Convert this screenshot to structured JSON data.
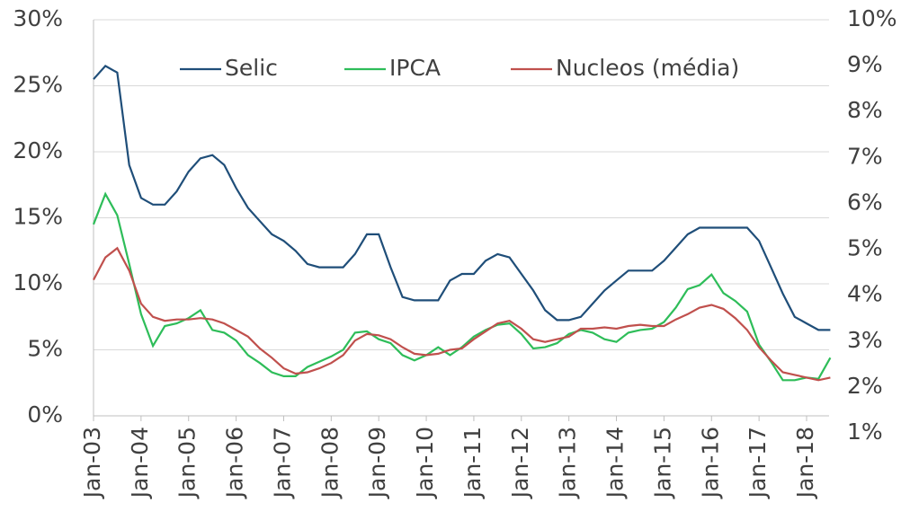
{
  "chart_data": {
    "type": "line",
    "categories": [
      "Jan-03",
      null,
      null,
      null,
      "Jan-04",
      null,
      null,
      null,
      "Jan-05",
      null,
      null,
      null,
      "Jan-06",
      null,
      null,
      null,
      "Jan-07",
      null,
      null,
      null,
      "Jan-08",
      null,
      null,
      null,
      "Jan-09",
      null,
      null,
      null,
      "Jan-10",
      null,
      null,
      null,
      "Jan-11",
      null,
      null,
      null,
      "Jan-12",
      null,
      null,
      null,
      "Jan-13",
      null,
      null,
      null,
      "Jan-14",
      null,
      null,
      null,
      "Jan-15",
      null,
      null,
      null,
      "Jan-16",
      null,
      null,
      null,
      "Jan-17",
      null,
      null,
      null,
      "Jan-18",
      null,
      null
    ],
    "series": [
      {
        "name": "Selic",
        "color": "#1f4e79",
        "values": [
          25.5,
          26.5,
          26,
          19,
          16.5,
          16,
          16,
          17,
          18.5,
          19.5,
          19.75,
          19,
          17.25,
          15.75,
          14.75,
          13.75,
          13.25,
          12.5,
          11.5,
          11.25,
          11.25,
          11.25,
          12.25,
          13.75,
          13.75,
          11.25,
          9,
          8.75,
          8.75,
          8.75,
          10.25,
          10.75,
          10.75,
          11.75,
          12.25,
          12,
          10.75,
          9.5,
          8,
          7.25,
          7.25,
          7.5,
          8.5,
          9.5,
          10.25,
          11,
          11,
          11,
          11.75,
          12.75,
          13.75,
          14.25,
          14.25,
          14.25,
          14.25,
          14.25,
          13.25,
          11.25,
          9.25,
          7.5,
          7,
          6.5,
          6.5
        ]
      },
      {
        "name": "IPCA",
        "color": "#2ebd59",
        "values": [
          14.5,
          16.8,
          15.2,
          11.5,
          7.7,
          5.3,
          6.8,
          7,
          7.4,
          8,
          6.5,
          6.3,
          5.7,
          4.6,
          4,
          3.3,
          3,
          3,
          3.7,
          4.1,
          4.5,
          5,
          6.3,
          6.4,
          5.8,
          5.5,
          4.6,
          4.2,
          4.6,
          5.2,
          4.6,
          5.2,
          6,
          6.5,
          6.9,
          7,
          6.2,
          5.1,
          5.2,
          5.5,
          6.2,
          6.5,
          6.3,
          5.8,
          5.6,
          6.3,
          6.5,
          6.6,
          7.1,
          8.2,
          9.6,
          9.9,
          10.7,
          9.3,
          8.7,
          7.9,
          5.4,
          4.1,
          2.7,
          2.7,
          2.9,
          2.8,
          4.4
        ]
      },
      {
        "name": "Nucleos (média)",
        "color": "#c0504d",
        "values": [
          10.3,
          12,
          12.7,
          11,
          8.5,
          7.5,
          7.2,
          7.3,
          7.3,
          7.4,
          7.3,
          7,
          6.5,
          6,
          5.1,
          4.4,
          3.6,
          3.2,
          3.3,
          3.6,
          4,
          4.6,
          5.7,
          6.2,
          6.1,
          5.8,
          5.2,
          4.7,
          4.6,
          4.7,
          5,
          5.1,
          5.8,
          6.4,
          7,
          7.2,
          6.6,
          5.8,
          5.6,
          5.8,
          6,
          6.6,
          6.6,
          6.7,
          6.6,
          6.8,
          6.9,
          6.8,
          6.8,
          7.3,
          7.7,
          8.2,
          8.4,
          8.1,
          7.4,
          6.5,
          5.2,
          4.2,
          3.3,
          3.1,
          2.9,
          2.7,
          2.9
        ]
      }
    ],
    "ylim": [
      0,
      30
    ],
    "yticks": [
      {
        "value": 0,
        "label": "0%"
      },
      {
        "value": 5,
        "label": "5%"
      },
      {
        "value": 10,
        "label": "10%"
      },
      {
        "value": 15,
        "label": "15%"
      },
      {
        "value": 20,
        "label": "20%"
      },
      {
        "value": 25,
        "label": "25%"
      },
      {
        "value": 30,
        "label": "30%"
      }
    ],
    "y2lim": [
      1,
      10
    ],
    "y2ticks": [
      {
        "value": 1,
        "label": "1%"
      },
      {
        "value": 2,
        "label": "2%"
      },
      {
        "value": 3,
        "label": "3%"
      },
      {
        "value": 4,
        "label": "4%"
      },
      {
        "value": 5,
        "label": "5%"
      },
      {
        "value": 6,
        "label": "6%"
      },
      {
        "value": 7,
        "label": "7%"
      },
      {
        "value": 8,
        "label": "8%"
      },
      {
        "value": 9,
        "label": "9%"
      },
      {
        "value": 10,
        "label": "10%"
      }
    ],
    "grid": true,
    "legend": "top"
  }
}
